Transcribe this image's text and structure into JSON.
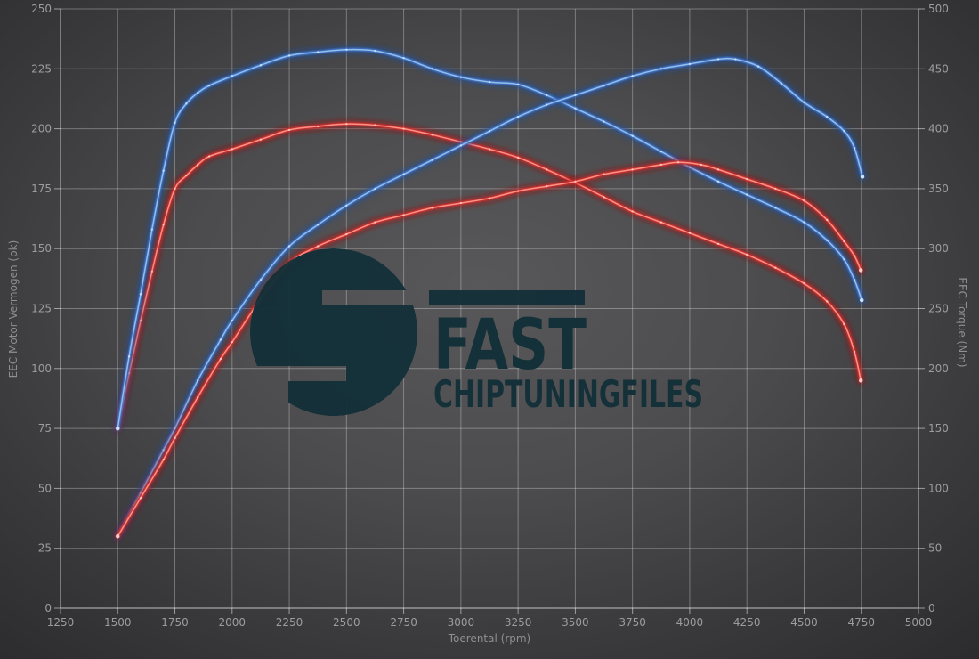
{
  "axes": {
    "x": {
      "label": "Toerental (rpm)",
      "min": 1250,
      "max": 5000,
      "step": 250,
      "tick_labels": [
        "1250",
        "1500",
        "1750",
        "2000",
        "2250",
        "2500",
        "2750",
        "3000",
        "3250",
        "3500",
        "3750",
        "4000",
        "4250",
        "4500",
        "4750",
        "5000"
      ]
    },
    "y_left": {
      "label": "EEC Motor Vermogen (pk)",
      "min": 0,
      "max": 250,
      "step": 25,
      "tick_labels": [
        "0",
        "25",
        "50",
        "75",
        "100",
        "125",
        "150",
        "175",
        "200",
        "225",
        "250"
      ]
    },
    "y_right": {
      "label": "EEC Torque (Nm)",
      "min": 0,
      "max": 500,
      "step": 50,
      "tick_labels": [
        "0",
        "50",
        "100",
        "150",
        "200",
        "250",
        "300",
        "350",
        "400",
        "450",
        "500"
      ]
    }
  },
  "watermark": {
    "brand": "FAST",
    "subtitle": "CHIPTUNINGFILES",
    "color": "#143039"
  },
  "colors": {
    "background_center": "#58585a",
    "background_edge": "#2c2c2e",
    "grid": "#ffffff",
    "tick_text": "#9c9c9c",
    "blue": {
      "glow": "#1d4fa0",
      "mid": "#3f74c8",
      "core": "#9cc6ef",
      "dot": "#d6e8fb"
    },
    "red": {
      "glow": "#a31515",
      "mid": "#d32f2f",
      "core": "#ff9d8f",
      "dot": "#ffd2c9"
    }
  },
  "chart_data": {
    "type": "line",
    "xlabel": "Toerental (rpm)",
    "ylabel_left": "EEC Motor Vermogen (pk)",
    "ylabel_right": "EEC Torque (Nm)",
    "x_range": [
      1250,
      5000
    ],
    "y_left_range": [
      0,
      250
    ],
    "y_right_range": [
      0,
      500
    ],
    "grid": true,
    "legend": "none",
    "series": [
      {
        "id": "torque-red",
        "name": "Torque curve (red)",
        "axis": "right",
        "palette": "red",
        "points": [
          [
            1500,
            150
          ],
          [
            1550,
            196
          ],
          [
            1600,
            240
          ],
          [
            1650,
            281
          ],
          [
            1700,
            320
          ],
          [
            1750,
            350
          ],
          [
            1800,
            361
          ],
          [
            1850,
            370
          ],
          [
            1900,
            377
          ],
          [
            2000,
            383
          ],
          [
            2125,
            391
          ],
          [
            2250,
            399
          ],
          [
            2375,
            402
          ],
          [
            2500,
            404
          ],
          [
            2625,
            403
          ],
          [
            2750,
            400
          ],
          [
            2875,
            395
          ],
          [
            3000,
            389
          ],
          [
            3125,
            383
          ],
          [
            3250,
            376
          ],
          [
            3375,
            366
          ],
          [
            3500,
            355
          ],
          [
            3625,
            343
          ],
          [
            3750,
            331
          ],
          [
            3875,
            322
          ],
          [
            4000,
            313
          ],
          [
            4125,
            304
          ],
          [
            4250,
            295
          ],
          [
            4375,
            284
          ],
          [
            4500,
            271
          ],
          [
            4600,
            256
          ],
          [
            4675,
            237
          ],
          [
            4720,
            214
          ],
          [
            4748,
            190
          ]
        ]
      },
      {
        "id": "torque-blue",
        "name": "Torque curve (blue)",
        "axis": "right",
        "palette": "blue",
        "points": [
          [
            1500,
            150
          ],
          [
            1550,
            210
          ],
          [
            1600,
            262
          ],
          [
            1650,
            316
          ],
          [
            1700,
            365
          ],
          [
            1750,
            405
          ],
          [
            1800,
            421
          ],
          [
            1850,
            430
          ],
          [
            1900,
            436
          ],
          [
            2000,
            444
          ],
          [
            2125,
            453
          ],
          [
            2250,
            461
          ],
          [
            2375,
            464
          ],
          [
            2500,
            466
          ],
          [
            2625,
            465
          ],
          [
            2750,
            459
          ],
          [
            2875,
            450
          ],
          [
            3000,
            443
          ],
          [
            3125,
            439
          ],
          [
            3250,
            437
          ],
          [
            3375,
            428
          ],
          [
            3500,
            417
          ],
          [
            3625,
            406
          ],
          [
            3750,
            394
          ],
          [
            3875,
            381
          ],
          [
            4000,
            368
          ],
          [
            4125,
            356
          ],
          [
            4250,
            345
          ],
          [
            4375,
            334
          ],
          [
            4500,
            322
          ],
          [
            4600,
            307
          ],
          [
            4675,
            291
          ],
          [
            4720,
            274
          ],
          [
            4752,
            257
          ]
        ]
      },
      {
        "id": "power-blue",
        "name": "Power curve (blue)",
        "axis": "left",
        "palette": "blue",
        "points": [
          [
            1500,
            30
          ],
          [
            1600,
            48
          ],
          [
            1700,
            66
          ],
          [
            1750,
            75
          ],
          [
            1850,
            95
          ],
          [
            1950,
            112
          ],
          [
            2000,
            120
          ],
          [
            2125,
            137
          ],
          [
            2250,
            151
          ],
          [
            2375,
            160
          ],
          [
            2500,
            168
          ],
          [
            2625,
            175
          ],
          [
            2750,
            181
          ],
          [
            2875,
            187
          ],
          [
            3000,
            193
          ],
          [
            3125,
            199
          ],
          [
            3250,
            205
          ],
          [
            3375,
            210
          ],
          [
            3500,
            214
          ],
          [
            3625,
            218
          ],
          [
            3750,
            222
          ],
          [
            3875,
            225
          ],
          [
            4000,
            227
          ],
          [
            4125,
            229
          ],
          [
            4200,
            229
          ],
          [
            4300,
            226
          ],
          [
            4400,
            219
          ],
          [
            4500,
            211
          ],
          [
            4600,
            205
          ],
          [
            4675,
            199
          ],
          [
            4720,
            192
          ],
          [
            4755,
            180
          ]
        ]
      },
      {
        "id": "power-red",
        "name": "Power curve (red)",
        "axis": "left",
        "palette": "red",
        "points": [
          [
            1500,
            30
          ],
          [
            1600,
            46
          ],
          [
            1700,
            62
          ],
          [
            1750,
            71
          ],
          [
            1850,
            88
          ],
          [
            1950,
            104
          ],
          [
            2000,
            111
          ],
          [
            2125,
            129
          ],
          [
            2250,
            144
          ],
          [
            2375,
            151
          ],
          [
            2500,
            156
          ],
          [
            2625,
            161
          ],
          [
            2750,
            164
          ],
          [
            2875,
            167
          ],
          [
            3000,
            169
          ],
          [
            3125,
            171
          ],
          [
            3250,
            174
          ],
          [
            3375,
            176
          ],
          [
            3500,
            178
          ],
          [
            3625,
            181
          ],
          [
            3750,
            183
          ],
          [
            3875,
            185
          ],
          [
            3950,
            186
          ],
          [
            4050,
            185
          ],
          [
            4125,
            183
          ],
          [
            4250,
            179
          ],
          [
            4375,
            175
          ],
          [
            4500,
            170
          ],
          [
            4600,
            162
          ],
          [
            4675,
            153
          ],
          [
            4720,
            147
          ],
          [
            4748,
            141
          ]
        ]
      }
    ]
  }
}
